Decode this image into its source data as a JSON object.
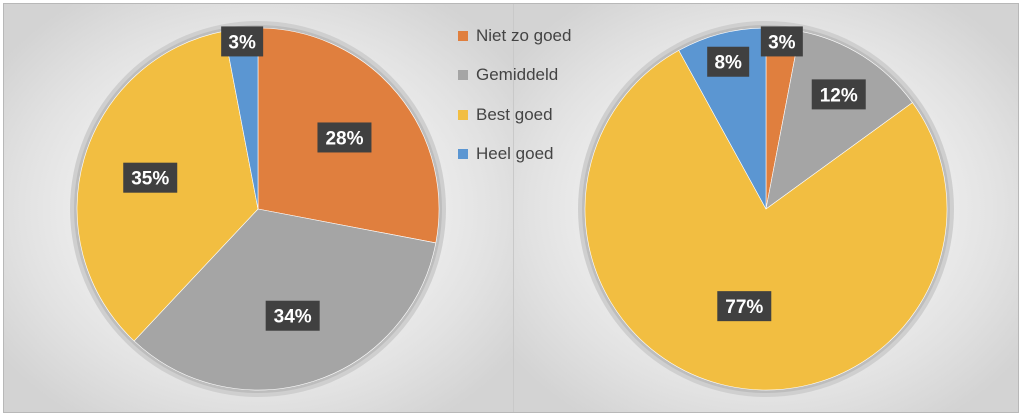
{
  "legend": {
    "items": [
      {
        "label": "Niet zo goed",
        "color": "#E07F3E"
      },
      {
        "label": "Gemiddeld",
        "color": "#A5A5A5"
      },
      {
        "label": "Best goed",
        "color": "#F2BE41"
      },
      {
        "label": "Heel goed",
        "color": "#5B96D2"
      }
    ]
  },
  "chart_data": [
    {
      "type": "pie",
      "title": "",
      "categories": [
        "Niet zo goed",
        "Gemiddeld",
        "Best goed",
        "Heel goed"
      ],
      "values": [
        28,
        34,
        35,
        3
      ],
      "data_labels": [
        "28%",
        "34%",
        "35%",
        "3%"
      ],
      "colors": [
        "#E07F3E",
        "#A5A5A5",
        "#F2BE41",
        "#5B96D2"
      ],
      "start_angle_deg": 0,
      "direction": "clockwise",
      "legend": "top-right"
    },
    {
      "type": "pie",
      "title": "",
      "categories": [
        "Niet zo goed",
        "Gemiddeld",
        "Best goed",
        "Heel goed"
      ],
      "values": [
        3,
        12,
        77,
        8
      ],
      "data_labels": [
        "3%",
        "12%",
        "77%",
        "8%"
      ],
      "colors": [
        "#E07F3E",
        "#A5A5A5",
        "#F2BE41",
        "#5B96D2"
      ],
      "start_angle_deg": 0,
      "direction": "clockwise",
      "legend": "top-left"
    }
  ]
}
